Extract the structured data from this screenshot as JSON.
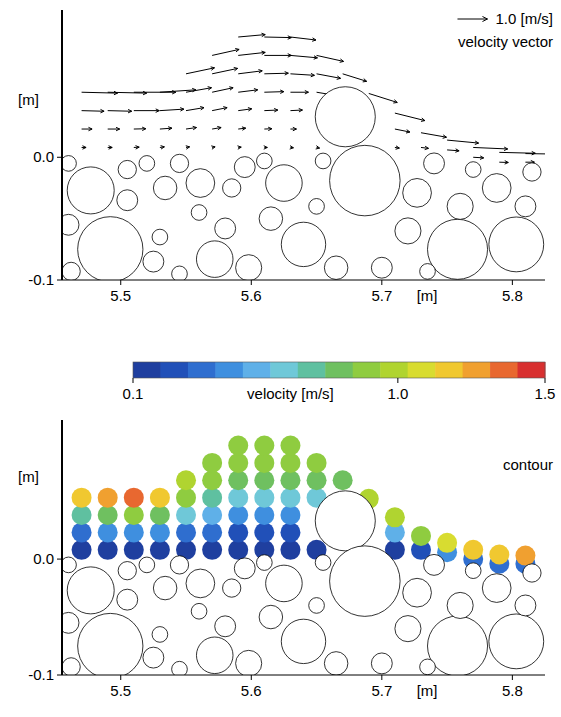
{
  "chart_data": {
    "type": "particle_flow",
    "x_label": "[m]",
    "y_label": "[m]",
    "xlim": [
      5.455,
      5.825
    ],
    "ylim": [
      -0.1,
      0.12
    ],
    "xticks": [
      5.5,
      5.6,
      5.7,
      5.8
    ],
    "yticks": [
      {
        "value": 0,
        "label": "0.0"
      },
      {
        "value": -0.1,
        "label": "-0.1"
      }
    ],
    "panels": [
      {
        "type": "vector",
        "annotation": "velocity vector",
        "reference_vector": {
          "value": 1.0,
          "label": "1.0 [m/s]"
        }
      },
      {
        "type": "contour",
        "annotation": "contour",
        "colorbar": {
          "label": "velocity [m/s]",
          "range": [
            0.1,
            1.5
          ],
          "ticks": [
            0.1,
            {
              "value": 1.0,
              "label": "1.0"
            },
            1.5
          ],
          "colors": [
            "#1f3f9f",
            "#2150b8",
            "#2f6ecf",
            "#3f8fdf",
            "#5fb0e8",
            "#6fc8d8",
            "#5fc0a0",
            "#6fc060",
            "#8fcc40",
            "#b0d430",
            "#d8dc30",
            "#f0c830",
            "#f0a030",
            "#e86830",
            "#d83030"
          ]
        }
      }
    ],
    "flow": [
      [
        5.47,
        0.008,
        0.15,
        0.0
      ],
      [
        5.47,
        0.023,
        0.35,
        0.0
      ],
      [
        5.47,
        0.038,
        0.75,
        -0.02
      ],
      [
        5.47,
        0.053,
        1.2,
        -0.03
      ],
      [
        5.49,
        0.008,
        0.15,
        0.0
      ],
      [
        5.49,
        0.023,
        0.4,
        0.0
      ],
      [
        5.49,
        0.038,
        0.8,
        -0.02
      ],
      [
        5.49,
        0.053,
        1.3,
        -0.03
      ],
      [
        5.51,
        0.008,
        0.18,
        0.01
      ],
      [
        5.51,
        0.023,
        0.4,
        0.01
      ],
      [
        5.51,
        0.038,
        0.85,
        0.0
      ],
      [
        5.51,
        0.053,
        1.4,
        0.0
      ],
      [
        5.53,
        0.008,
        0.15,
        0.02
      ],
      [
        5.53,
        0.023,
        0.4,
        0.03
      ],
      [
        5.53,
        0.038,
        0.8,
        0.05
      ],
      [
        5.53,
        0.053,
        1.2,
        0.08
      ],
      [
        5.55,
        0.008,
        0.12,
        0.02
      ],
      [
        5.55,
        0.023,
        0.35,
        0.05
      ],
      [
        5.55,
        0.038,
        0.6,
        0.1
      ],
      [
        5.55,
        0.053,
        0.85,
        0.15
      ],
      [
        5.55,
        0.068,
        0.95,
        0.2
      ],
      [
        5.57,
        0.008,
        0.1,
        0.02
      ],
      [
        5.57,
        0.023,
        0.3,
        0.05
      ],
      [
        5.57,
        0.038,
        0.5,
        0.1
      ],
      [
        5.57,
        0.053,
        0.7,
        0.15
      ],
      [
        5.57,
        0.068,
        0.85,
        0.18
      ],
      [
        5.57,
        0.083,
        0.9,
        0.2
      ],
      [
        5.59,
        0.008,
        0.1,
        0.01
      ],
      [
        5.59,
        0.023,
        0.25,
        0.03
      ],
      [
        5.59,
        0.038,
        0.45,
        0.06
      ],
      [
        5.59,
        0.053,
        0.65,
        0.08
      ],
      [
        5.59,
        0.068,
        0.8,
        0.1
      ],
      [
        5.59,
        0.083,
        0.9,
        0.1
      ],
      [
        5.59,
        0.098,
        0.9,
        0.08
      ],
      [
        5.61,
        0.008,
        0.1,
        0.0
      ],
      [
        5.61,
        0.023,
        0.25,
        0.01
      ],
      [
        5.61,
        0.038,
        0.45,
        0.02
      ],
      [
        5.61,
        0.053,
        0.65,
        0.02
      ],
      [
        5.61,
        0.068,
        0.8,
        0.02
      ],
      [
        5.61,
        0.083,
        0.9,
        0.0
      ],
      [
        5.61,
        0.098,
        0.9,
        -0.02
      ],
      [
        5.63,
        0.008,
        0.1,
        -0.01
      ],
      [
        5.63,
        0.023,
        0.2,
        0.0
      ],
      [
        5.63,
        0.038,
        0.4,
        0.02
      ],
      [
        5.63,
        0.053,
        0.6,
        0.0
      ],
      [
        5.63,
        0.068,
        0.8,
        -0.05
      ],
      [
        5.63,
        0.083,
        0.9,
        -0.08
      ],
      [
        5.63,
        0.098,
        0.85,
        -0.1
      ],
      [
        5.65,
        0.008,
        0.1,
        -0.02
      ],
      [
        5.65,
        0.053,
        0.6,
        -0.1
      ],
      [
        5.65,
        0.068,
        0.8,
        -0.15
      ],
      [
        5.65,
        0.083,
        0.9,
        -0.2
      ],
      [
        5.67,
        0.068,
        0.8,
        -0.25
      ],
      [
        5.69,
        0.052,
        0.95,
        -0.3
      ],
      [
        5.71,
        0.008,
        0.15,
        -0.02
      ],
      [
        5.71,
        0.023,
        0.5,
        -0.1
      ],
      [
        5.71,
        0.036,
        1.0,
        -0.25
      ],
      [
        5.73,
        0.008,
        0.25,
        -0.03
      ],
      [
        5.73,
        0.02,
        0.85,
        -0.15
      ],
      [
        5.75,
        0.006,
        0.4,
        -0.03
      ],
      [
        5.75,
        0.014,
        1.05,
        -0.1
      ],
      [
        5.77,
        0.0,
        0.35,
        -0.02
      ],
      [
        5.77,
        0.008,
        1.15,
        -0.05
      ],
      [
        5.79,
        -0.004,
        0.3,
        -0.01
      ],
      [
        5.79,
        0.004,
        1.2,
        -0.03
      ],
      [
        5.81,
        -0.004,
        0.3,
        0.0
      ],
      [
        5.81,
        0.003,
        1.25,
        -0.02
      ]
    ],
    "grains": [
      [
        5.672,
        0.033,
        0.023
      ],
      [
        5.687,
        -0.019,
        0.027
      ],
      [
        5.477,
        -0.027,
        0.018
      ],
      [
        5.492,
        -0.075,
        0.025
      ],
      [
        5.64,
        -0.071,
        0.017
      ],
      [
        5.758,
        -0.075,
        0.023
      ],
      [
        5.803,
        -0.071,
        0.021
      ],
      [
        5.788,
        -0.025,
        0.011
      ],
      [
        5.561,
        -0.021,
        0.011
      ],
      [
        5.572,
        -0.083,
        0.014
      ],
      [
        5.625,
        -0.021,
        0.014
      ],
      [
        5.534,
        -0.025,
        0.009
      ],
      [
        5.727,
        -0.029,
        0.011
      ],
      [
        5.46,
        -0.055,
        0.008
      ],
      [
        5.462,
        -0.093,
        0.007
      ],
      [
        5.505,
        -0.035,
        0.008
      ],
      [
        5.525,
        -0.085,
        0.008
      ],
      [
        5.545,
        -0.095,
        0.006
      ],
      [
        5.598,
        -0.09,
        0.01
      ],
      [
        5.615,
        -0.05,
        0.009
      ],
      [
        5.665,
        -0.09,
        0.009
      ],
      [
        5.72,
        -0.06,
        0.01
      ],
      [
        5.74,
        -0.005,
        0.008
      ],
      [
        5.76,
        -0.04,
        0.01
      ],
      [
        5.81,
        -0.04,
        0.008
      ],
      [
        5.7,
        -0.09,
        0.008
      ],
      [
        5.52,
        -0.005,
        0.006
      ],
      [
        5.545,
        -0.005,
        0.007
      ],
      [
        5.58,
        -0.058,
        0.008
      ],
      [
        5.65,
        -0.04,
        0.006
      ],
      [
        5.77,
        -0.01,
        0.006
      ],
      [
        5.815,
        -0.012,
        0.007
      ],
      [
        5.46,
        -0.005,
        0.006
      ],
      [
        5.61,
        -0.003,
        0.006
      ],
      [
        5.655,
        -0.003,
        0.006
      ],
      [
        5.56,
        -0.045,
        0.006
      ],
      [
        5.53,
        -0.065,
        0.006
      ],
      [
        5.735,
        -0.093,
        0.006
      ],
      [
        5.505,
        -0.01,
        0.007
      ],
      [
        5.595,
        -0.008,
        0.008
      ],
      [
        5.585,
        -0.025,
        0.007
      ]
    ]
  }
}
